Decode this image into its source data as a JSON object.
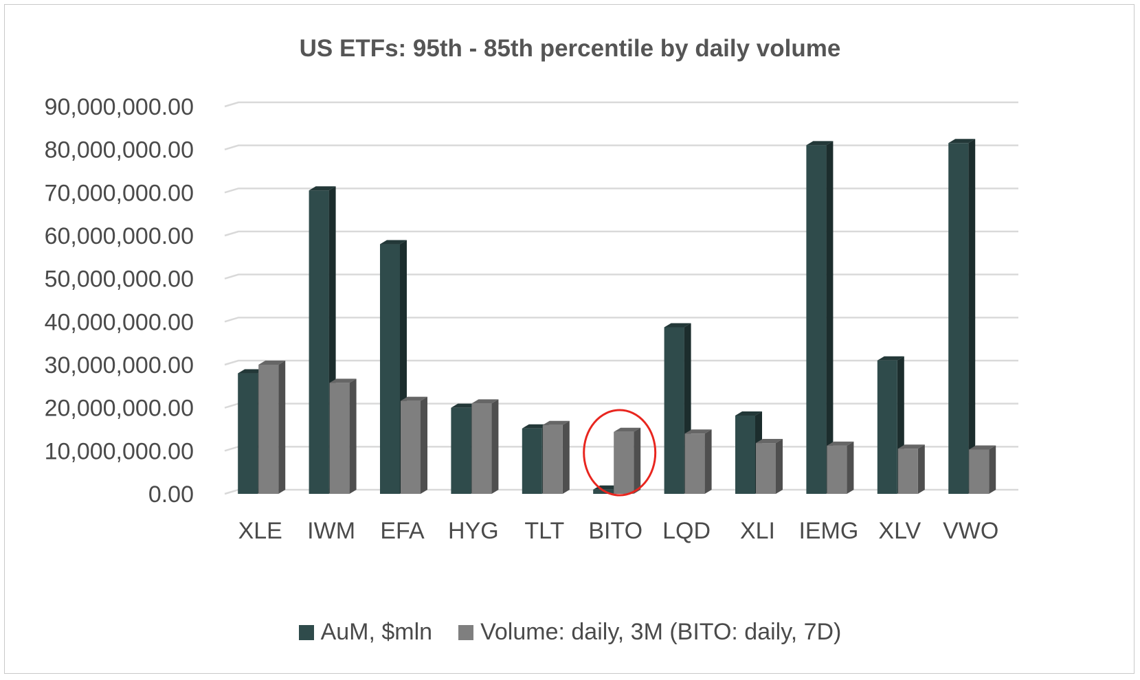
{
  "chart_data": {
    "type": "bar",
    "title": "US ETFs: 95th - 85th percentile by daily volume",
    "categories": [
      "XLE",
      "IWM",
      "EFA",
      "HYG",
      "TLT",
      "BITO",
      "LQD",
      "XLI",
      "IEMG",
      "XLV",
      "VWO"
    ],
    "series": [
      {
        "name": "AuM, $mln",
        "color": "#2f4b4b",
        "values": [
          28000000,
          70500000,
          58000000,
          20000000,
          15200000,
          1000000,
          38700000,
          18200000,
          81000000,
          31000000,
          81500000
        ]
      },
      {
        "name": "Volume: daily, 3M (BITO: daily, 7D)",
        "color": "#7f7f7f",
        "values": [
          30000000,
          25800000,
          21600000,
          21000000,
          16000000,
          14400000,
          14000000,
          11800000,
          11200000,
          10500000,
          10300000
        ]
      }
    ],
    "yticks": [
      "0.00",
      "10,000,000.00",
      "20,000,000.00",
      "30,000,000.00",
      "40,000,000.00",
      "50,000,000.00",
      "60,000,000.00",
      "70,000,000.00",
      "80,000,000.00",
      "90,000,000.00"
    ],
    "ylim": [
      0,
      90000000
    ],
    "grid": true,
    "legend": "bottom",
    "highlight_category": "BITO"
  }
}
